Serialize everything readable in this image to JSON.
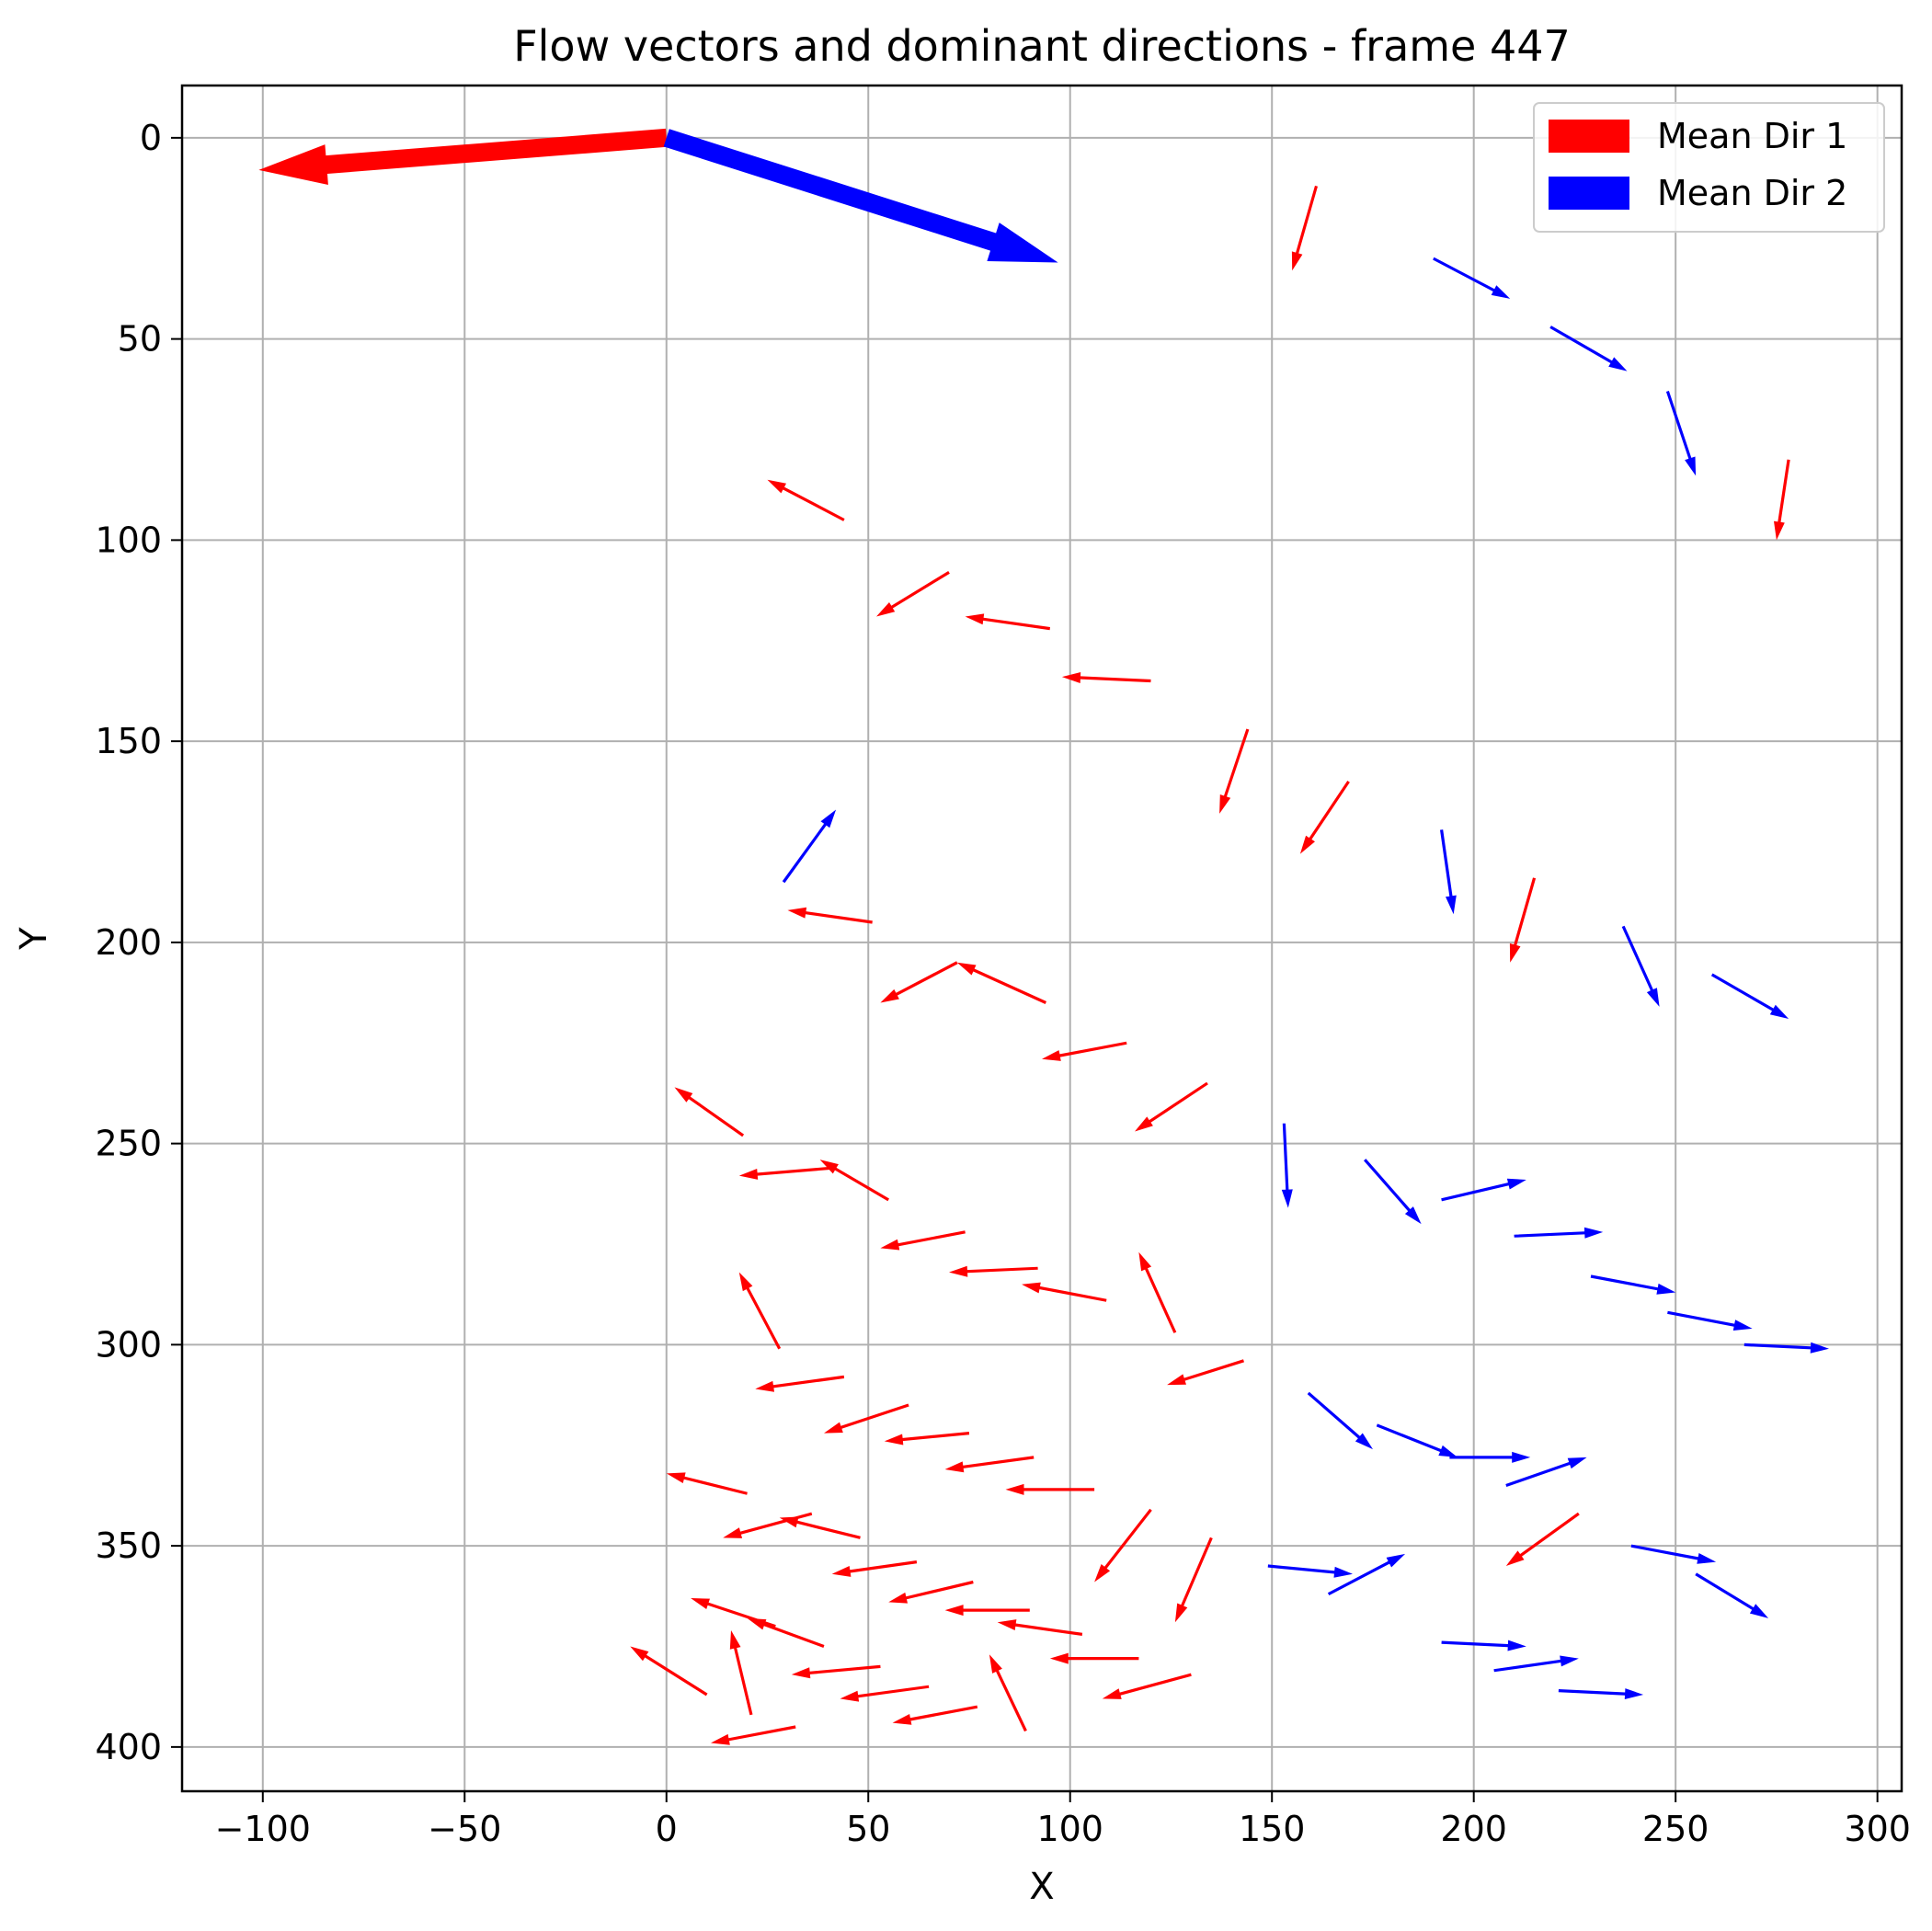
{
  "chart_data": {
    "type": "quiver",
    "title": "Flow vectors and dominant directions - frame 447",
    "xlabel": "X",
    "ylabel": "Y",
    "xlim": [
      -120,
      306
    ],
    "ylim": [
      -13,
      411
    ],
    "y_inverted": true,
    "grid": true,
    "legend_placement": "top-right",
    "xticks": [
      -100,
      -50,
      0,
      50,
      100,
      150,
      200,
      250,
      300
    ],
    "xtick_labels": [
      "−100",
      "−50",
      "0",
      "50",
      "100",
      "150",
      "200",
      "250",
      "300"
    ],
    "yticks": [
      0,
      50,
      100,
      150,
      200,
      250,
      300,
      350,
      400
    ],
    "ytick_labels": [
      "0",
      "50",
      "100",
      "150",
      "200",
      "250",
      "300",
      "350",
      "400"
    ],
    "colors": {
      "dir1": "#ff0000",
      "dir2": "#0000ff",
      "grid": "#b0b0b0"
    },
    "legend": [
      {
        "label": "Mean Dir 1",
        "color": "#ff0000"
      },
      {
        "label": "Mean Dir 2",
        "color": "#0000ff"
      }
    ],
    "mean_directions": [
      {
        "name": "Mean Dir 1",
        "x": 0,
        "y": 0,
        "u": -101,
        "v": 8,
        "color": "#ff0000"
      },
      {
        "name": "Mean Dir 2",
        "x": 0,
        "y": 0,
        "u": 97,
        "v": 31,
        "color": "#0000ff"
      }
    ],
    "series": [
      {
        "name": "Mean Dir 1",
        "color": "#ff0000",
        "vectors": [
          [
            161,
            12,
            155,
            33
          ],
          [
            278,
            80,
            275,
            100
          ],
          [
            44,
            95,
            25,
            85
          ],
          [
            70,
            108,
            52,
            119
          ],
          [
            95,
            122,
            74,
            119
          ],
          [
            120,
            135,
            98,
            134
          ],
          [
            144,
            147,
            137,
            168
          ],
          [
            169,
            160,
            157,
            178
          ],
          [
            215,
            184,
            209,
            205
          ],
          [
            51,
            195,
            30,
            192
          ],
          [
            94,
            215,
            72,
            205
          ],
          [
            72,
            205,
            53,
            215
          ],
          [
            114,
            225,
            93,
            229
          ],
          [
            134,
            235,
            116,
            247
          ],
          [
            19,
            248,
            2,
            236
          ],
          [
            55,
            264,
            38,
            254
          ],
          [
            42,
            256,
            18,
            258
          ],
          [
            74,
            272,
            53,
            276
          ],
          [
            92,
            281,
            70,
            282
          ],
          [
            109,
            289,
            88,
            285
          ],
          [
            126,
            297,
            117,
            277
          ],
          [
            28,
            301,
            18,
            282
          ],
          [
            143,
            304,
            124,
            310
          ],
          [
            44,
            308,
            22,
            311
          ],
          [
            60,
            315,
            39,
            322
          ],
          [
            75,
            322,
            54,
            324
          ],
          [
            91,
            328,
            69,
            331
          ],
          [
            106,
            336,
            84,
            336
          ],
          [
            20,
            337,
            0,
            332
          ],
          [
            120,
            341,
            106,
            359
          ],
          [
            48,
            348,
            28,
            343
          ],
          [
            36,
            342,
            14,
            348
          ],
          [
            135,
            348,
            126,
            369
          ],
          [
            226,
            342,
            208,
            355
          ],
          [
            62,
            354,
            41,
            357
          ],
          [
            76,
            359,
            55,
            364
          ],
          [
            90,
            366,
            69,
            366
          ],
          [
            27,
            370,
            6,
            363
          ],
          [
            39,
            375,
            20,
            368
          ],
          [
            103,
            372,
            82,
            369
          ],
          [
            10,
            387,
            -9,
            375
          ],
          [
            117,
            378,
            95,
            378
          ],
          [
            21,
            392,
            16,
            371
          ],
          [
            89,
            396,
            80,
            377
          ],
          [
            53,
            380,
            31,
            382
          ],
          [
            65,
            385,
            43,
            388
          ],
          [
            77,
            390,
            56,
            394
          ],
          [
            130,
            382,
            108,
            388
          ],
          [
            32,
            395,
            11,
            399
          ]
        ]
      },
      {
        "name": "Mean Dir 2",
        "color": "#0000ff",
        "vectors": [
          [
            190,
            30,
            209,
            40
          ],
          [
            219,
            47,
            238,
            58
          ],
          [
            248,
            63,
            255,
            84
          ],
          [
            29,
            185,
            42,
            167
          ],
          [
            192,
            172,
            195,
            193
          ],
          [
            237,
            196,
            246,
            216
          ],
          [
            259,
            208,
            278,
            219
          ],
          [
            153,
            245,
            154,
            266
          ],
          [
            173,
            254,
            187,
            270
          ],
          [
            192,
            264,
            213,
            259
          ],
          [
            210,
            273,
            232,
            272
          ],
          [
            229,
            283,
            250,
            287
          ],
          [
            248,
            292,
            269,
            296
          ],
          [
            267,
            300,
            288,
            301
          ],
          [
            159,
            312,
            175,
            326
          ],
          [
            176,
            320,
            196,
            328
          ],
          [
            194,
            328,
            214,
            328
          ],
          [
            208,
            335,
            228,
            328
          ],
          [
            149,
            355,
            170,
            357
          ],
          [
            164,
            362,
            183,
            352
          ],
          [
            239,
            350,
            260,
            354
          ],
          [
            255,
            357,
            273,
            368
          ],
          [
            192,
            374,
            213,
            375
          ],
          [
            205,
            381,
            226,
            378
          ],
          [
            221,
            386,
            242,
            387
          ]
        ]
      }
    ]
  }
}
